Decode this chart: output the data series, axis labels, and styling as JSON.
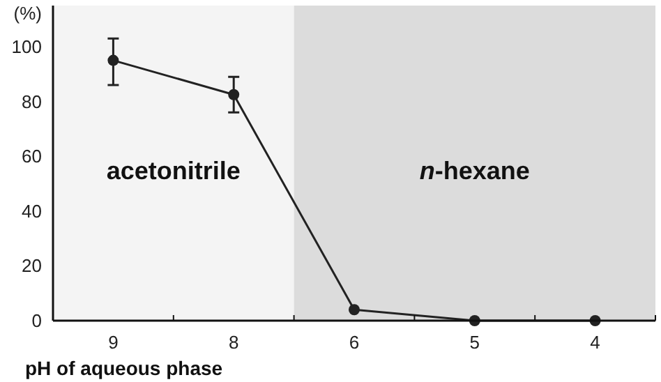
{
  "chart_data": {
    "type": "line",
    "ylabel": "(%)",
    "xlabel": "pH of aqueous phase",
    "categories": [
      "9",
      "8",
      "6",
      "5",
      "4"
    ],
    "series": [
      {
        "color": "#222222",
        "values": [
          95,
          82.5,
          4,
          0,
          0
        ],
        "errors": [
          [
            86,
            103
          ],
          [
            76,
            89
          ],
          null,
          null,
          null
        ]
      }
    ],
    "ylim": [
      0,
      115
    ],
    "yticks": [
      0,
      20,
      40,
      60,
      80,
      100
    ],
    "marker": "circle",
    "line_style": "solid",
    "grid": false,
    "bands": [
      {
        "axis": "x",
        "from": "9",
        "to": "8",
        "label": "acetonitrile",
        "color": "#f4f4f4"
      },
      {
        "axis": "x",
        "from": "6",
        "to": "4",
        "label": "n-hexane",
        "color": "#dcdcdc"
      }
    ]
  }
}
